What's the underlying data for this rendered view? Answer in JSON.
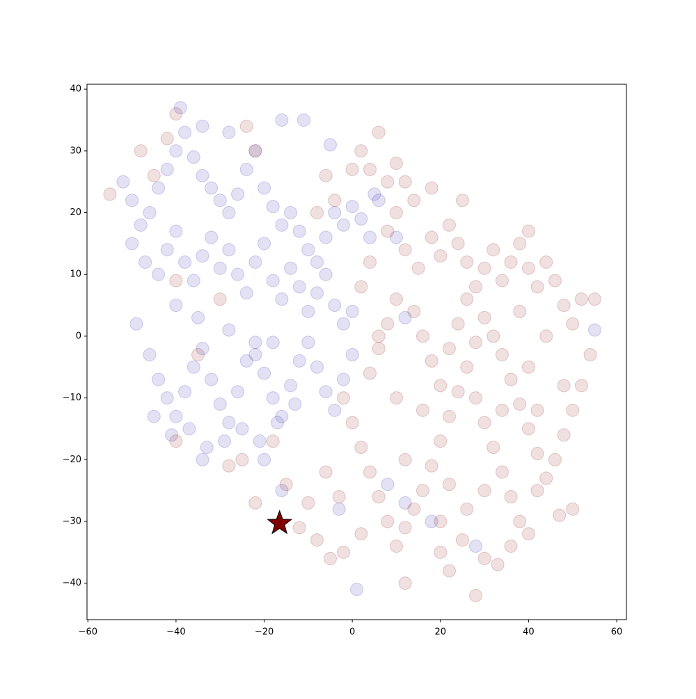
{
  "chart_data": {
    "type": "scatter",
    "xlim": [
      -60.2,
      62.2
    ],
    "ylim": [
      -45.9,
      40.8
    ],
    "xticks": [
      {
        "value": -60,
        "label": "−60"
      },
      {
        "value": -40,
        "label": "−40"
      },
      {
        "value": -20,
        "label": "−20"
      },
      0,
      20,
      40,
      60
    ],
    "yticks": [
      {
        "value": -40,
        "label": "−40"
      },
      {
        "value": -30,
        "label": "−30"
      },
      {
        "value": -20,
        "label": "−20"
      },
      {
        "value": -10,
        "label": "−10"
      },
      0,
      10,
      20,
      30,
      40
    ],
    "series": [
      {
        "color": "#3b3bb8",
        "opacity": 0.15,
        "marker": "circle",
        "x": [
          -52,
          -50,
          -48,
          -46,
          -44,
          -42,
          -40,
          -38,
          -36,
          -34,
          -32,
          -30,
          -28,
          -26,
          -24,
          -22,
          -20,
          -18,
          -16,
          -14,
          -12,
          -10,
          -8,
          -6,
          -4,
          -2,
          0,
          2,
          4,
          6,
          -50,
          -47,
          -44,
          -42,
          -40,
          -38,
          -36,
          -34,
          -32,
          -30,
          -28,
          -26,
          -24,
          -22,
          -20,
          -18,
          -16,
          -14,
          -12,
          -10,
          -8,
          -6,
          -4,
          -2,
          0,
          -39,
          -34,
          -28,
          -16,
          -11,
          -5,
          -46,
          -44,
          -42,
          -40,
          -38,
          -36,
          -34,
          -32,
          -30,
          -28,
          -26,
          -24,
          -22,
          -20,
          -18,
          -16,
          -14,
          -12,
          -10,
          -8,
          -6,
          -4,
          -2,
          0,
          -45,
          -41,
          -37,
          -33,
          -29,
          -25,
          -21,
          -17,
          -13,
          -34,
          -20,
          -16,
          -3,
          1,
          8,
          12,
          18,
          28,
          55,
          5,
          10,
          12,
          -49,
          -40,
          -35,
          -28,
          -22,
          -18
        ],
        "values": [
          25,
          22,
          18,
          20,
          24,
          27,
          30,
          33,
          29,
          26,
          24,
          22,
          20,
          23,
          27,
          30,
          24,
          21,
          18,
          20,
          17,
          14,
          12,
          16,
          20,
          18,
          21,
          19,
          16,
          22,
          15,
          12,
          10,
          14,
          17,
          12,
          9,
          13,
          16,
          11,
          14,
          10,
          7,
          12,
          15,
          9,
          6,
          11,
          8,
          4,
          7,
          10,
          5,
          2,
          4,
          37,
          34,
          33,
          35,
          35,
          31,
          -3,
          -7,
          -10,
          -13,
          -9,
          -5,
          -2,
          -7,
          -11,
          -14,
          -9,
          -4,
          -1,
          -6,
          -10,
          -13,
          -8,
          -4,
          -1,
          -5,
          -9,
          -12,
          -7,
          -3,
          -13,
          -16,
          -15,
          -18,
          -17,
          -15,
          -17,
          -14,
          -11,
          -20,
          -20,
          -25,
          -28,
          -41,
          -24,
          -27,
          -30,
          -34,
          1,
          23,
          16,
          3,
          2,
          5,
          3,
          1,
          -3,
          -1
        ]
      },
      {
        "color": "#9b2d2d",
        "opacity": 0.15,
        "marker": "circle",
        "x": [
          -55,
          -48,
          -42,
          -40,
          -22,
          -24,
          6,
          2,
          4,
          8,
          10,
          12,
          14,
          10,
          8,
          12,
          15,
          18,
          20,
          22,
          24,
          26,
          28,
          30,
          32,
          34,
          36,
          38,
          40,
          42,
          44,
          46,
          48,
          50,
          52,
          55,
          54,
          52,
          50,
          48,
          46,
          44,
          42,
          40,
          38,
          36,
          34,
          32,
          30,
          28,
          26,
          24,
          22,
          20,
          18,
          16,
          14,
          12,
          10,
          8,
          6,
          4,
          2,
          0,
          -2,
          4,
          6,
          8,
          10,
          14,
          16,
          18,
          20,
          22,
          24,
          26,
          28,
          30,
          32,
          34,
          36,
          38,
          40,
          36,
          30,
          22,
          12,
          20,
          25,
          28,
          33,
          -2,
          -5,
          -8,
          -12,
          -15,
          -22,
          -18,
          -25,
          -28,
          -40,
          -35,
          -30,
          -40,
          -45,
          -4,
          -8,
          -6,
          0,
          4,
          2,
          6,
          40,
          44,
          48,
          42,
          38,
          34,
          30,
          26,
          20,
          16,
          12,
          10,
          2,
          50,
          47,
          22,
          42,
          25,
          18,
          40,
          -6,
          -10,
          -3
        ],
        "values": [
          23,
          30,
          32,
          36,
          30,
          34,
          33,
          30,
          27,
          25,
          28,
          25,
          22,
          20,
          17,
          14,
          11,
          16,
          13,
          18,
          15,
          12,
          8,
          11,
          14,
          9,
          12,
          15,
          11,
          8,
          12,
          9,
          5,
          2,
          6,
          6,
          -3,
          -8,
          -12,
          -16,
          -20,
          -23,
          -19,
          -15,
          -11,
          -7,
          -3,
          0,
          3,
          -1,
          -5,
          -9,
          -13,
          -17,
          -21,
          -25,
          -28,
          -31,
          -34,
          -30,
          -26,
          -22,
          -18,
          -14,
          -10,
          -6,
          -2,
          2,
          6,
          4,
          0,
          -4,
          -8,
          -2,
          2,
          6,
          -10,
          -14,
          -18,
          -22,
          -26,
          -30,
          -32,
          -34,
          -36,
          -38,
          -40,
          -35,
          -33,
          -42,
          -37,
          -35,
          -36,
          -33,
          -31,
          -24,
          -27,
          -17,
          -20,
          -21,
          -17,
          -3,
          6,
          9,
          26,
          22,
          20,
          26,
          27,
          12,
          8,
          0,
          -5,
          0,
          -8,
          -12,
          4,
          -12,
          -25,
          -28,
          -30,
          -12,
          -20,
          -10,
          -32,
          -28,
          -29,
          -24,
          -25,
          22,
          24,
          17,
          -22,
          -27,
          -26
        ]
      },
      {
        "color": "#800000",
        "opacity": 1,
        "marker": "star",
        "x": [
          -16.5
        ],
        "values": [
          -30.3
        ]
      }
    ]
  }
}
